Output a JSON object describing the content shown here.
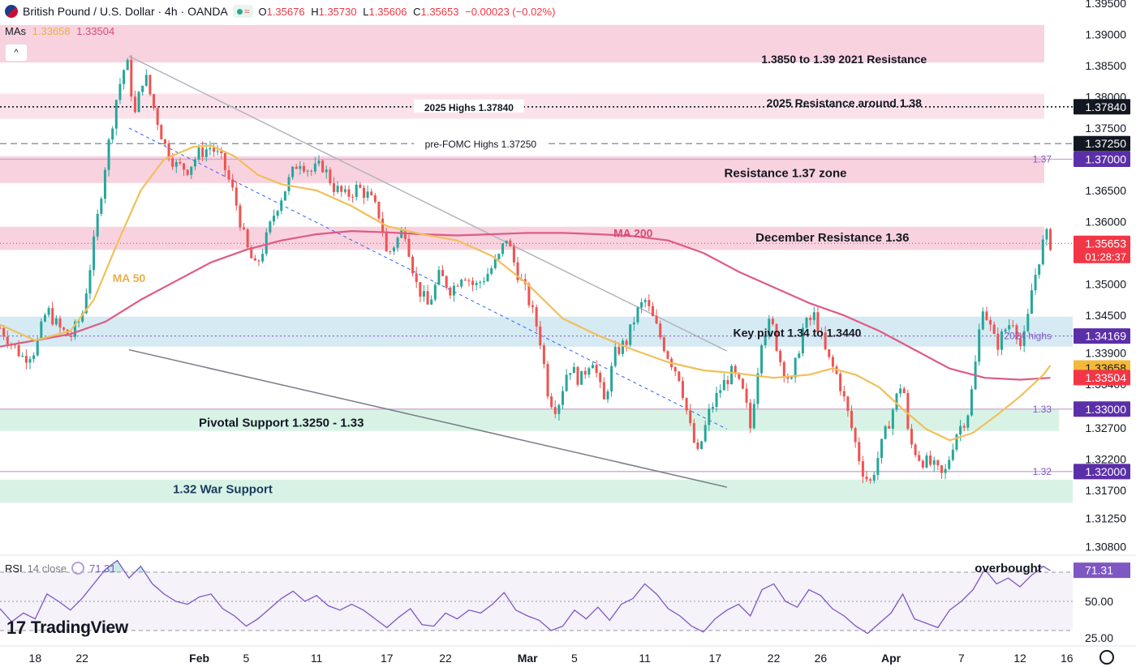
{
  "header": {
    "title": "British Pound / U.S. Dollar · 4h · OANDA",
    "open_label": "O",
    "open": "1.35676",
    "high_label": "H",
    "high": "1.35730",
    "low_label": "L",
    "low": "1.35606",
    "close_label": "C",
    "close": "1.35653",
    "change": "−0.00023 (−0.02%)"
  },
  "mas": {
    "label": "MAs",
    "ma50": "1.33658",
    "ma200": "1.33504"
  },
  "collapse_glyph": "^",
  "rsi_header": {
    "label": "RSI",
    "settings": "14 close",
    "value": "71.31"
  },
  "logo": {
    "mark": "17",
    "text": "TradingView"
  },
  "colors": {
    "up": "#26a69a",
    "down": "#ef5350",
    "ma50": "#f0c05a",
    "ma200": "#de5b83",
    "rsi": "#7e57c2",
    "resistance_zone": "#f8d2df",
    "support_zone": "#d8f3e6",
    "pivot_zone": "#d6eaf3"
  },
  "chart_data": {
    "type": "candlestick",
    "symbol": "GBPUSD",
    "timeframe": "4h",
    "y_range": [
      1.307,
      1.3955
    ],
    "x_range": [
      "Jan 15",
      "Apr 16"
    ],
    "x_ticks": [
      {
        "label": "18",
        "day": 18
      },
      {
        "label": "22",
        "day": 22
      },
      {
        "label": "Feb",
        "day": 32
      },
      {
        "label": "5",
        "day": 36
      },
      {
        "label": "11",
        "day": 42
      },
      {
        "label": "17",
        "day": 48
      },
      {
        "label": "22",
        "day": 53
      },
      {
        "label": "Mar",
        "day": 60
      },
      {
        "label": "5",
        "day": 64
      },
      {
        "label": "11",
        "day": 70
      },
      {
        "label": "17",
        "day": 76
      },
      {
        "label": "22",
        "day": 81
      },
      {
        "label": "26",
        "day": 85
      },
      {
        "label": "Apr",
        "day": 91
      },
      {
        "label": "7",
        "day": 97
      },
      {
        "label": "12",
        "day": 102
      },
      {
        "label": "16",
        "day": 106
      }
    ],
    "y_ticks": [
      "1.39500",
      "1.39000",
      "1.38500",
      "1.38000",
      "1.37500",
      "1.36500",
      "1.36000",
      "1.35000",
      "1.34500",
      "1.33900",
      "1.33400",
      "1.32700",
      "1.32200",
      "1.31700",
      "1.31250",
      "1.30800"
    ],
    "y_tick_values": [
      1.395,
      1.39,
      1.385,
      1.38,
      1.375,
      1.365,
      1.36,
      1.35,
      1.345,
      1.339,
      1.334,
      1.327,
      1.322,
      1.317,
      1.3125,
      1.308
    ],
    "price_badges": [
      {
        "value": 1.3784,
        "label": "1.37840",
        "bg": "#131722",
        "fg": "#ffffff"
      },
      {
        "value": 1.3725,
        "label": "1.37250",
        "bg": "#131722",
        "fg": "#ffffff"
      },
      {
        "value": 1.37,
        "label": "1.37000",
        "bg": "#5b2fa8",
        "fg": "#ffffff"
      },
      {
        "value": 1.35653,
        "label": "1.35653",
        "sub": "01:28:37",
        "bg": "#f23645",
        "fg": "#ffffff"
      },
      {
        "value": 1.34169,
        "label": "1.34169",
        "bg": "#5b2fa8",
        "fg": "#ffffff"
      },
      {
        "value": 1.33658,
        "label": "1.33658",
        "bg": "#f5b93a",
        "fg": "#131722"
      },
      {
        "value": 1.33504,
        "label": "1.33504",
        "bg": "#f23645",
        "fg": "#ffffff"
      },
      {
        "value": 1.33,
        "label": "1.33000",
        "bg": "#5b2fa8",
        "fg": "#ffffff"
      },
      {
        "value": 1.32,
        "label": "1.32000",
        "bg": "#5b2fa8",
        "fg": "#ffffff"
      }
    ],
    "zones": [
      {
        "from": 1.3855,
        "to": 1.3915,
        "color": "#f8d2df",
        "label": "1.3850 to 1.39 2021 Resistance"
      },
      {
        "from": 1.3765,
        "to": 1.3805,
        "color": "#fbe2ea",
        "label": "2025 Resistance around 1.38"
      },
      {
        "from": 1.3662,
        "to": 1.3705,
        "color": "#f8d2df",
        "label": "Resistance 1.37 zone"
      },
      {
        "from": 1.3555,
        "to": 1.3592,
        "color": "#f8d2df",
        "label": "December Resistance 1.36"
      },
      {
        "from": 1.34,
        "to": 1.3448,
        "color": "#d6eaf3",
        "label": "Key pivot 1.34 to 1.3440"
      },
      {
        "from": 1.3265,
        "to": 1.33,
        "color": "#d8f3e6",
        "label": "Pivotal Support 1.3250 - 1.33"
      },
      {
        "from": 1.315,
        "to": 1.3187,
        "color": "#d8f3e6",
        "label": "1.32 War Support"
      }
    ],
    "levels": [
      {
        "value": 1.3784,
        "style": "dotted",
        "label": "2025 Highs 1.37840"
      },
      {
        "value": 1.3725,
        "style": "dashed",
        "label": "pre-FOMC Highs 1.37250"
      },
      {
        "value": 1.37,
        "style": "solid",
        "label": "1.37"
      },
      {
        "value": 1.34169,
        "style": "dotted",
        "label": "2024 highs"
      },
      {
        "value": 1.33,
        "style": "solid",
        "label": "1.33"
      },
      {
        "value": 1.32,
        "style": "solid",
        "label": "1.32"
      },
      {
        "value": 1.35653,
        "style": "dotted",
        "label": ""
      }
    ],
    "ma_labels": {
      "ma50": "MA 50",
      "ma200": "MA 200"
    },
    "trendlines": [
      {
        "from": [
          26,
          1.3865
        ],
        "to": [
          77,
          1.3393
        ],
        "color": "#b2b5be"
      },
      {
        "from": [
          26,
          1.3395
        ],
        "to": [
          77,
          1.3175
        ],
        "color": "#787b86"
      },
      {
        "from": [
          26,
          1.375
        ],
        "to": [
          77,
          1.3268
        ],
        "color": "#2962ff",
        "dashed": true
      }
    ],
    "path_points": [
      [
        15.0,
        1.343
      ],
      [
        16.0,
        1.3405
      ],
      [
        17.0,
        1.3382
      ],
      [
        18.0,
        1.3395
      ],
      [
        19.0,
        1.346
      ],
      [
        20.0,
        1.343
      ],
      [
        21.0,
        1.3415
      ],
      [
        22.0,
        1.345
      ],
      [
        23.0,
        1.3565
      ],
      [
        24.0,
        1.3695
      ],
      [
        25.0,
        1.3805
      ],
      [
        25.8,
        1.386
      ],
      [
        26.5,
        1.377
      ],
      [
        27.3,
        1.384
      ],
      [
        28.0,
        1.379
      ],
      [
        29.0,
        1.3725
      ],
      [
        30.0,
        1.369
      ],
      [
        31.0,
        1.3685
      ],
      [
        32.0,
        1.371
      ],
      [
        33.0,
        1.372
      ],
      [
        34.0,
        1.3695
      ],
      [
        35.0,
        1.364
      ],
      [
        36.0,
        1.356
      ],
      [
        36.8,
        1.3525
      ],
      [
        37.5,
        1.356
      ],
      [
        38.5,
        1.362
      ],
      [
        39.5,
        1.366
      ],
      [
        40.5,
        1.37
      ],
      [
        41.5,
        1.368
      ],
      [
        42.5,
        1.369
      ],
      [
        43.5,
        1.3655
      ],
      [
        44.5,
        1.364
      ],
      [
        45.5,
        1.3655
      ],
      [
        46.5,
        1.364
      ],
      [
        47.5,
        1.3605
      ],
      [
        48.0,
        1.3545
      ],
      [
        48.5,
        1.356
      ],
      [
        49.5,
        1.359
      ],
      [
        50.5,
        1.35
      ],
      [
        51.5,
        1.3465
      ],
      [
        52.5,
        1.3515
      ],
      [
        53.5,
        1.349
      ],
      [
        54.5,
        1.352
      ],
      [
        55.5,
        1.3495
      ],
      [
        56.5,
        1.3515
      ],
      [
        57.5,
        1.354
      ],
      [
        58.2,
        1.3575
      ],
      [
        59.0,
        1.3525
      ],
      [
        60.0,
        1.348
      ],
      [
        61.0,
        1.342
      ],
      [
        61.8,
        1.332
      ],
      [
        62.5,
        1.33
      ],
      [
        63.5,
        1.337
      ],
      [
        64.5,
        1.3345
      ],
      [
        65.5,
        1.3385
      ],
      [
        66.5,
        1.331
      ],
      [
        67.5,
        1.339
      ],
      [
        68.5,
        1.341
      ],
      [
        69.2,
        1.345
      ],
      [
        70.0,
        1.3475
      ],
      [
        71.0,
        1.343
      ],
      [
        72.0,
        1.3385
      ],
      [
        73.0,
        1.335
      ],
      [
        73.8,
        1.3275
      ],
      [
        74.5,
        1.3225
      ],
      [
        75.5,
        1.3295
      ],
      [
        76.5,
        1.3335
      ],
      [
        77.5,
        1.336
      ],
      [
        78.5,
        1.332
      ],
      [
        79.0,
        1.327
      ],
      [
        80.0,
        1.342
      ],
      [
        80.8,
        1.344
      ],
      [
        81.5,
        1.338
      ],
      [
        82.5,
        1.334
      ],
      [
        83.5,
        1.343
      ],
      [
        84.5,
        1.345
      ],
      [
        85.5,
        1.3385
      ],
      [
        86.5,
        1.335
      ],
      [
        87.5,
        1.328
      ],
      [
        88.5,
        1.3205
      ],
      [
        89.2,
        1.318
      ],
      [
        90.0,
        1.323
      ],
      [
        91.0,
        1.329
      ],
      [
        92.0,
        1.335
      ],
      [
        92.5,
        1.325
      ],
      [
        93.5,
        1.322
      ],
      [
        94.5,
        1.321
      ],
      [
        95.5,
        1.319
      ],
      [
        96.5,
        1.326
      ],
      [
        97.5,
        1.329
      ],
      [
        98.0,
        1.334
      ],
      [
        98.8,
        1.347
      ],
      [
        99.3,
        1.344
      ],
      [
        100.0,
        1.34
      ],
      [
        100.8,
        1.343
      ],
      [
        101.5,
        1.3445
      ],
      [
        102.0,
        1.34
      ],
      [
        102.5,
        1.342
      ],
      [
        103.0,
        1.349
      ],
      [
        103.8,
        1.3555
      ],
      [
        104.2,
        1.358
      ],
      [
        104.6,
        1.3565
      ]
    ],
    "ma50_points": [
      [
        15.0,
        1.3435
      ],
      [
        18.0,
        1.341
      ],
      [
        21.0,
        1.3425
      ],
      [
        23.0,
        1.3475
      ],
      [
        25.0,
        1.3565
      ],
      [
        27.0,
        1.365
      ],
      [
        29.0,
        1.37
      ],
      [
        31.5,
        1.372
      ],
      [
        33.0,
        1.3722
      ],
      [
        35.0,
        1.3705
      ],
      [
        37.0,
        1.3675
      ],
      [
        39.0,
        1.366
      ],
      [
        42.0,
        1.365
      ],
      [
        45.0,
        1.3625
      ],
      [
        48.0,
        1.3593
      ],
      [
        51.0,
        1.358
      ],
      [
        54.0,
        1.357
      ],
      [
        57.0,
        1.3545
      ],
      [
        60.0,
        1.35
      ],
      [
        63.0,
        1.3445
      ],
      [
        66.0,
        1.3418
      ],
      [
        69.0,
        1.3395
      ],
      [
        72.0,
        1.3375
      ],
      [
        75.0,
        1.3362
      ],
      [
        78.0,
        1.3357
      ],
      [
        81.0,
        1.335
      ],
      [
        84.0,
        1.3355
      ],
      [
        86.0,
        1.3365
      ],
      [
        88.0,
        1.3355
      ],
      [
        90.0,
        1.3335
      ],
      [
        92.0,
        1.33
      ],
      [
        94.0,
        1.3268
      ],
      [
        96.0,
        1.325
      ],
      [
        98.0,
        1.3262
      ],
      [
        100.0,
        1.329
      ],
      [
        102.0,
        1.332
      ],
      [
        104.0,
        1.3355
      ],
      [
        104.6,
        1.337
      ]
    ],
    "ma200_points": [
      [
        15.0,
        1.34
      ],
      [
        18.0,
        1.341
      ],
      [
        21.0,
        1.342
      ],
      [
        24.0,
        1.344
      ],
      [
        27.0,
        1.3475
      ],
      [
        30.0,
        1.3505
      ],
      [
        33.0,
        1.3535
      ],
      [
        36.0,
        1.3555
      ],
      [
        39.0,
        1.357
      ],
      [
        42.0,
        1.358
      ],
      [
        45.0,
        1.3585
      ],
      [
        48.0,
        1.3583
      ],
      [
        51.0,
        1.358
      ],
      [
        54.0,
        1.3578
      ],
      [
        57.0,
        1.358
      ],
      [
        60.0,
        1.3582
      ],
      [
        63.0,
        1.3582
      ],
      [
        66.0,
        1.358
      ],
      [
        69.0,
        1.3577
      ],
      [
        72.0,
        1.357
      ],
      [
        75.0,
        1.355
      ],
      [
        78.0,
        1.352
      ],
      [
        81.0,
        1.3495
      ],
      [
        84.0,
        1.347
      ],
      [
        87.0,
        1.345
      ],
      [
        90.0,
        1.3425
      ],
      [
        93.0,
        1.3395
      ],
      [
        96.0,
        1.3365
      ],
      [
        99.0,
        1.335
      ],
      [
        102.0,
        1.3347
      ],
      [
        104.6,
        1.335
      ]
    ],
    "annotations_price": [
      {
        "text": "1.3850 to 1.39 2021 Resistance",
        "day": 87,
        "price": 1.386
      },
      {
        "text": "2025 Highs 1.37840",
        "day": 55,
        "price": 1.3784
      },
      {
        "text": "2025 Resistance around 1.38",
        "day": 87,
        "price": 1.379
      },
      {
        "text": "pre-FOMC Highs 1.37250",
        "day": 56,
        "price": 1.3725
      },
      {
        "text": "Resistance 1.37 zone",
        "day": 82,
        "price": 1.3678
      },
      {
        "text": "December Resistance 1.36",
        "day": 86,
        "price": 1.3575
      },
      {
        "text": "MA 200",
        "day": 69,
        "price": 1.3582
      },
      {
        "text": "MA 50",
        "day": 26,
        "price": 1.351
      },
      {
        "text": "Key pivot 1.34 to 1.3440",
        "day": 83,
        "price": 1.3422
      },
      {
        "text": "Pivotal Support 1.3250 - 1.33",
        "day": 39,
        "price": 1.3278
      },
      {
        "text": "1.32 War Support",
        "day": 34,
        "price": 1.3172
      },
      {
        "text": "1.37",
        "day": 103.6,
        "price": 1.37
      },
      {
        "text": "1.33",
        "day": 103.6,
        "price": 1.33
      },
      {
        "text": "1.32",
        "day": 103.6,
        "price": 1.32
      },
      {
        "text": "2024 highs",
        "day": 103.6,
        "price": 1.34169
      }
    ],
    "rsi": {
      "y_ticks": [
        "71.31",
        "50.00",
        "25.00"
      ],
      "levels": [
        70,
        50,
        30
      ],
      "range": [
        20,
        80
      ],
      "annotation": "overbought",
      "points": [
        [
          15,
          45
        ],
        [
          16,
          36
        ],
        [
          17,
          42
        ],
        [
          18,
          38
        ],
        [
          19,
          55
        ],
        [
          20,
          50
        ],
        [
          21,
          44
        ],
        [
          22,
          52
        ],
        [
          23,
          62
        ],
        [
          24,
          72
        ],
        [
          25,
          78
        ],
        [
          26,
          66
        ],
        [
          27,
          74
        ],
        [
          28,
          62
        ],
        [
          29,
          55
        ],
        [
          30,
          50
        ],
        [
          31,
          48
        ],
        [
          32,
          53
        ],
        [
          33,
          55
        ],
        [
          34,
          45
        ],
        [
          35,
          40
        ],
        [
          36,
          33
        ],
        [
          37,
          38
        ],
        [
          38,
          45
        ],
        [
          39,
          52
        ],
        [
          40,
          57
        ],
        [
          41,
          50
        ],
        [
          42,
          54
        ],
        [
          43,
          47
        ],
        [
          44,
          44
        ],
        [
          45,
          48
        ],
        [
          46,
          44
        ],
        [
          47,
          38
        ],
        [
          48,
          32
        ],
        [
          49,
          39
        ],
        [
          50,
          45
        ],
        [
          51,
          34
        ],
        [
          52,
          33
        ],
        [
          53,
          42
        ],
        [
          54,
          38
        ],
        [
          55,
          44
        ],
        [
          56,
          42
        ],
        [
          57,
          48
        ],
        [
          58,
          56
        ],
        [
          59,
          44
        ],
        [
          60,
          40
        ],
        [
          61,
          37
        ],
        [
          62,
          30
        ],
        [
          63,
          33
        ],
        [
          64,
          44
        ],
        [
          65,
          38
        ],
        [
          66,
          46
        ],
        [
          67,
          37
        ],
        [
          68,
          48
        ],
        [
          69,
          52
        ],
        [
          70,
          62
        ],
        [
          71,
          55
        ],
        [
          72,
          45
        ],
        [
          73,
          40
        ],
        [
          74,
          33
        ],
        [
          75,
          29
        ],
        [
          76,
          38
        ],
        [
          77,
          44
        ],
        [
          78,
          48
        ],
        [
          79,
          40
        ],
        [
          80,
          58
        ],
        [
          81,
          62
        ],
        [
          82,
          50
        ],
        [
          83,
          46
        ],
        [
          84,
          58
        ],
        [
          85,
          54
        ],
        [
          86,
          45
        ],
        [
          87,
          40
        ],
        [
          88,
          33
        ],
        [
          89,
          28
        ],
        [
          90,
          35
        ],
        [
          91,
          42
        ],
        [
          92,
          55
        ],
        [
          93,
          38
        ],
        [
          94,
          35
        ],
        [
          95,
          32
        ],
        [
          96,
          44
        ],
        [
          97,
          50
        ],
        [
          98,
          58
        ],
        [
          99,
          72
        ],
        [
          100,
          62
        ],
        [
          101,
          66
        ],
        [
          102,
          60
        ],
        [
          103,
          68
        ],
        [
          104,
          74
        ],
        [
          104.6,
          71
        ]
      ]
    }
  }
}
